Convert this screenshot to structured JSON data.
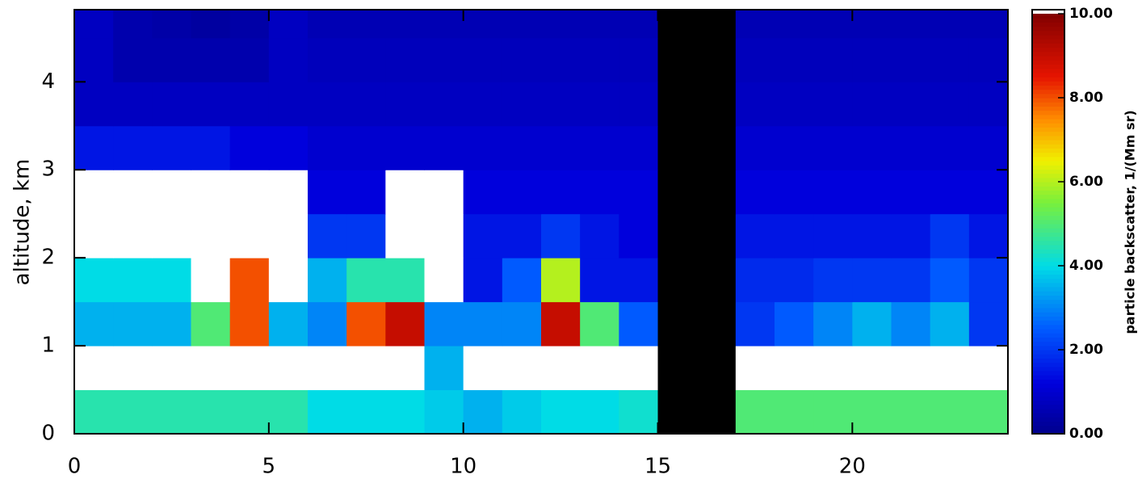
{
  "chart_data": {
    "type": "heatmap",
    "y_label": "altitude, km",
    "colorbar_label": "particle backscatter, 1/(Mm sr)",
    "xlim": [
      0,
      24
    ],
    "xticks": [
      0,
      5,
      10,
      15,
      20
    ],
    "ylim": [
      0,
      4.82
    ],
    "yticks": [
      0,
      1,
      2,
      3,
      4
    ],
    "clim": [
      0,
      10
    ],
    "colorbar_ticks": [
      {
        "value": 0,
        "label": "0.00"
      },
      {
        "value": 2,
        "label": "2.00"
      },
      {
        "value": 4,
        "label": "4.00"
      },
      {
        "value": 6,
        "label": "6.00"
      },
      {
        "value": 8,
        "label": "8.00"
      },
      {
        "value": 10,
        "label": "10.00"
      }
    ],
    "xbins": [
      0,
      1,
      2,
      3,
      4,
      5,
      6,
      7,
      8,
      9,
      10,
      11,
      12,
      13,
      14,
      15,
      16,
      17,
      18,
      19,
      20,
      21,
      22,
      23,
      24
    ],
    "ybins": [
      0,
      0.5,
      1,
      1.5,
      2,
      2.5,
      3,
      3.5,
      4,
      4.5,
      5
    ],
    "values": [
      [
        4.5,
        4.5,
        4.5,
        4.5,
        4.5,
        4.5,
        4,
        4,
        4,
        3.8,
        3.5,
        3.8,
        4,
        4,
        4.2,
        null,
        null,
        5,
        5,
        5,
        5,
        5,
        5,
        5
      ],
      [
        12,
        12,
        12,
        12,
        12,
        12,
        12,
        12,
        12,
        3.5,
        12,
        12,
        12,
        12,
        12,
        null,
        null,
        12,
        12,
        12,
        12,
        12,
        12,
        12
      ],
      [
        3.5,
        3.5,
        3.5,
        5,
        8,
        3.5,
        3,
        8,
        9,
        3,
        3,
        3,
        9,
        5,
        2.5,
        null,
        null,
        2,
        2.5,
        3,
        3.5,
        3,
        3.5,
        2
      ],
      [
        4,
        4,
        4,
        12,
        8,
        12,
        3.5,
        4.5,
        4.5,
        12,
        1.5,
        2.5,
        6,
        1.5,
        1.5,
        null,
        null,
        1.8,
        1.8,
        2,
        2,
        2,
        2.5,
        2
      ],
      [
        12,
        12,
        12,
        12,
        12,
        12,
        2,
        2,
        12,
        12,
        1.5,
        1.5,
        2,
        1.5,
        1.2,
        null,
        null,
        1.5,
        1.5,
        1.5,
        1.5,
        1.5,
        2,
        1.5
      ],
      [
        12,
        12,
        12,
        12,
        12,
        12,
        1.2,
        1.2,
        12,
        12,
        1.2,
        1.2,
        1.2,
        1.2,
        1.2,
        null,
        null,
        1.2,
        1.2,
        1.2,
        1.2,
        1.2,
        1.2,
        1.2
      ],
      [
        1.5,
        1.5,
        1.5,
        1.5,
        1.2,
        1.2,
        1,
        1,
        1,
        1,
        1,
        1,
        1,
        1,
        1,
        null,
        null,
        1,
        1,
        1,
        1,
        1,
        1,
        1
      ],
      [
        0.8,
        0.8,
        0.8,
        0.8,
        0.8,
        0.8,
        0.8,
        0.8,
        0.8,
        0.8,
        0.8,
        0.8,
        0.8,
        0.8,
        0.8,
        null,
        null,
        0.8,
        0.8,
        0.8,
        0.8,
        0.8,
        0.8,
        0.8
      ],
      [
        0.8,
        0.5,
        0.5,
        0.5,
        0.5,
        0.8,
        0.7,
        0.7,
        0.7,
        0.7,
        0.7,
        0.7,
        0.7,
        0.7,
        0.7,
        null,
        null,
        0.7,
        0.7,
        0.7,
        0.7,
        0.7,
        0.7,
        0.7
      ],
      [
        0.8,
        0.5,
        0.4,
        0.3,
        0.4,
        0.8,
        0.6,
        0.6,
        0.6,
        0.6,
        0.6,
        0.6,
        0.6,
        0.6,
        0.6,
        null,
        null,
        0.6,
        0.6,
        0.6,
        0.6,
        0.6,
        0.6,
        0.6
      ]
    ]
  }
}
